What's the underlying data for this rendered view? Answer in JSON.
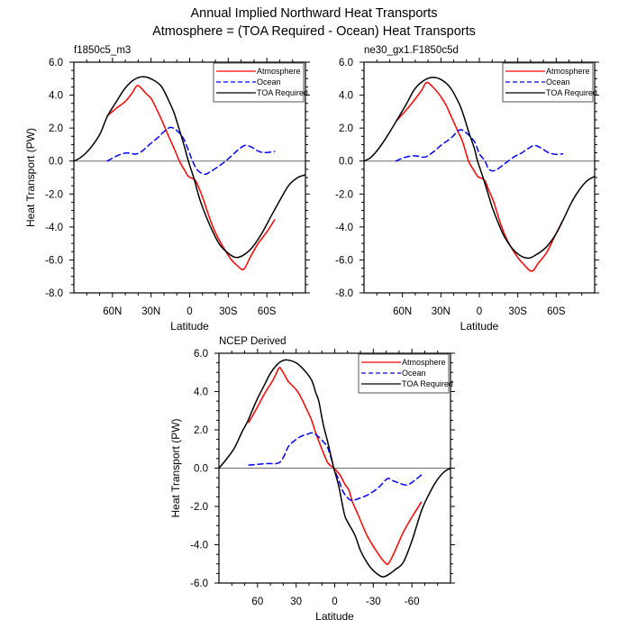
{
  "figure": {
    "title_line1": "Annual Implied Northward Heat Transports",
    "title_line2": "Atmosphere = (TOA Required - Ocean) Heat Transports"
  },
  "chart_data": [
    {
      "type": "line",
      "title": "f1850c5_m3",
      "xlabel": "Latitude",
      "ylabel": "Heat Transport (PW)",
      "xlim": [
        90,
        -90
      ],
      "ylim": [
        -8,
        6
      ],
      "xticks": [
        60,
        30,
        0,
        -30,
        -60
      ],
      "xtick_labels": [
        "60N",
        "30N",
        "0",
        "30S",
        "60S"
      ],
      "xminor_step": 10,
      "yticks": [
        6,
        4,
        2,
        0,
        -2,
        -4,
        -6,
        -8
      ],
      "ytick_labels": [
        "6.0",
        "4.0",
        "2.0",
        "0.0",
        "-2.0",
        "-4.0",
        "-6.0",
        "-8.0"
      ],
      "yminor_step": 0.5,
      "reference_line": 0,
      "grid": false,
      "legend": "top-right",
      "series": [
        {
          "name": "Atmosphere",
          "color": "#ff0000",
          "style": "solid",
          "x": [
            64,
            57,
            50,
            45,
            41,
            38,
            34,
            30,
            26,
            22,
            16,
            12,
            8,
            4,
            1,
            -2,
            -4.7,
            -7,
            -10.5,
            -16,
            -21,
            -26,
            -32,
            -37,
            -42,
            -47,
            -53,
            -60,
            -66
          ],
          "y": [
            2.75,
            3.2,
            3.62,
            4.1,
            4.57,
            4.45,
            4.1,
            3.8,
            3.2,
            2.53,
            1.44,
            0.75,
            0,
            -0.55,
            -0.93,
            -1.05,
            -1.2,
            -1.6,
            -2.3,
            -3.57,
            -4.5,
            -5.21,
            -5.95,
            -6.35,
            -6.57,
            -5.85,
            -5.03,
            -4.3,
            -3.57
          ]
        },
        {
          "name": "Ocean",
          "color": "#0000ff",
          "style": "dashed",
          "x": [
            64,
            57,
            51,
            46,
            42,
            37,
            31.6,
            25,
            20,
            15,
            10,
            4.7,
            0,
            -2.3,
            -6,
            -11.6,
            -16,
            -22,
            -28,
            -33.7,
            -38,
            -43,
            -48,
            -52,
            -56,
            -60,
            -66
          ],
          "y": [
            0,
            0.3,
            0.47,
            0.48,
            0.42,
            0.6,
            0.98,
            1.4,
            1.78,
            2.04,
            1.85,
            1.35,
            0.45,
            0,
            -0.55,
            -0.8,
            -0.65,
            -0.35,
            0,
            0.4,
            0.7,
            0.95,
            0.85,
            0.65,
            0.53,
            0.52,
            0.58
          ]
        },
        {
          "name": "TOA Required",
          "color": "#000000",
          "style": "solid",
          "x": [
            90,
            85,
            78,
            70,
            64,
            57,
            50,
            43,
            36,
            29,
            22,
            16,
            12,
            8,
            4.5,
            1,
            -3.5,
            -7,
            -10,
            -16,
            -23,
            -30,
            -36,
            -42,
            -49,
            -56,
            -63,
            -70,
            -77,
            -84,
            -90
          ],
          "y": [
            0,
            0.2,
            0.71,
            1.6,
            2.71,
            3.6,
            4.44,
            4.95,
            5.12,
            4.95,
            4.53,
            3.62,
            2.9,
            1.9,
            1.0,
            0,
            -1.1,
            -2.1,
            -2.8,
            -3.95,
            -5.03,
            -5.6,
            -5.85,
            -5.7,
            -5.21,
            -4.4,
            -3.39,
            -2.4,
            -1.48,
            -1.0,
            -0.84
          ]
        }
      ]
    },
    {
      "type": "line",
      "title": "ne30_gx1.F1850c5d",
      "xlabel": "Latitude",
      "ylabel": "",
      "xlim": [
        90,
        -90
      ],
      "ylim": [
        -8,
        6
      ],
      "xticks": [
        60,
        30,
        0,
        -30,
        -60
      ],
      "xtick_labels": [
        "60N",
        "30N",
        "0",
        "30S",
        "60S"
      ],
      "xminor_step": 10,
      "yticks": [
        6,
        4,
        2,
        0,
        -2,
        -4,
        -6,
        -8
      ],
      "ytick_labels": [
        "6.0",
        "4.0",
        "2.0",
        "0.0",
        "-2.0",
        "-4.0",
        "-6.0",
        "-8.0"
      ],
      "yminor_step": 0.5,
      "reference_line": 0,
      "grid": false,
      "legend": "top-right",
      "series": [
        {
          "name": "Atmosphere",
          "color": "#ff0000",
          "style": "solid",
          "x": [
            64.7,
            57,
            50.6,
            45,
            41.3,
            37,
            30.7,
            26,
            22.5,
            16.7,
            13,
            8.4,
            4,
            1,
            -1,
            -4.4,
            -7,
            -10.3,
            -12.7,
            -17,
            -22,
            -29,
            -35,
            -41,
            -46,
            -52.5,
            -58,
            -65
          ],
          "y": [
            2.44,
            3.1,
            3.71,
            4.3,
            4.76,
            4.55,
            3.98,
            3.4,
            2.8,
            1.8,
            1.16,
            0,
            -0.6,
            -0.95,
            -1.02,
            -1.2,
            -1.7,
            -2.29,
            -2.84,
            -3.9,
            -4.84,
            -5.75,
            -6.3,
            -6.69,
            -6.2,
            -5.56,
            -4.7,
            -3.62
          ]
        },
        {
          "name": "Ocean",
          "color": "#0000ff",
          "style": "dashed",
          "x": [
            65,
            59,
            53,
            48,
            42.4,
            36,
            29.5,
            22,
            15.5,
            10,
            3.7,
            0,
            -4.4,
            -7,
            -10.3,
            -14,
            -20,
            -27,
            -32.6,
            -38,
            -43,
            -48,
            -53,
            -57,
            -61,
            -65
          ],
          "y": [
            0,
            0.2,
            0.31,
            0.3,
            0.24,
            0.55,
            0.98,
            1.4,
            1.89,
            1.7,
            1.16,
            0.45,
            0,
            -0.45,
            -0.6,
            -0.5,
            -0.15,
            0.25,
            0.47,
            0.75,
            0.95,
            0.8,
            0.55,
            0.44,
            0.4,
            0.44
          ]
        },
        {
          "name": "TOA Required",
          "color": "#000000",
          "style": "solid",
          "x": [
            90,
            85,
            79,
            72,
            64.7,
            57,
            50.6,
            44,
            37.3,
            30,
            22.5,
            15.5,
            12,
            8,
            4,
            1.4,
            -3,
            -8,
            -10,
            -15,
            -20,
            -28,
            -37,
            -44,
            -52.5,
            -60,
            -66.6,
            -72,
            -78,
            -84,
            -90
          ],
          "y": [
            0,
            0.2,
            0.71,
            1.5,
            2.44,
            3.45,
            4.35,
            4.85,
            5.07,
            4.95,
            4.44,
            3.44,
            2.7,
            1.7,
            0.8,
            0,
            -1.02,
            -2.29,
            -2.8,
            -3.8,
            -4.65,
            -5.5,
            -5.89,
            -5.7,
            -5.2,
            -4.4,
            -3.38,
            -2.5,
            -1.75,
            -1.2,
            -0.93
          ]
        }
      ]
    },
    {
      "type": "line",
      "title": "NCEP Derived",
      "xlabel": "Latitude",
      "ylabel": "Heat Transport (PW)",
      "xlim": [
        90,
        -90
      ],
      "ylim": [
        -6,
        6
      ],
      "xticks": [
        60,
        30,
        0,
        -30,
        -60
      ],
      "xtick_labels": [
        "60",
        "30",
        "0",
        "-30",
        "-60"
      ],
      "xminor_step": 10,
      "yticks": [
        6,
        4,
        2,
        0,
        -2,
        -4,
        -6
      ],
      "ytick_labels": [
        "6.0",
        "4.0",
        "2.0",
        "0.0",
        "-2.0",
        "-4.0",
        "-6.0"
      ],
      "yminor_step": 0.5,
      "reference_line": 0,
      "grid": false,
      "legend": "top-right",
      "series": [
        {
          "name": "Atmosphere",
          "color": "#ff0000",
          "style": "solid",
          "x": [
            66.8,
            60,
            54.6,
            48,
            43.4,
            41.7,
            38,
            35.9,
            30,
            26.5,
            22,
            18,
            14.8,
            10,
            5.4,
            0.7,
            -4,
            -8,
            -11,
            -14,
            -18,
            -25,
            -32,
            -36.8,
            -39,
            -41.6,
            -46,
            -53.3,
            -60,
            -67.3
          ],
          "y": [
            2.39,
            3.2,
            3.88,
            4.6,
            5.22,
            5.17,
            4.75,
            4.51,
            4.1,
            3.73,
            3.1,
            2.5,
            1.85,
            1.0,
            0.28,
            0,
            -0.35,
            -0.85,
            -1.15,
            -1.8,
            -2.4,
            -3.5,
            -4.29,
            -4.76,
            -4.92,
            -5.0,
            -4.45,
            -3.35,
            -2.56,
            -1.78
          ]
        },
        {
          "name": "Ocean",
          "color": "#0000ff",
          "style": "dashed",
          "x": [
            66.8,
            60,
            52,
            44,
            40,
            36,
            31,
            26.5,
            21.8,
            17,
            12,
            7.7,
            5.4,
            2,
            0.7,
            -3,
            -6.3,
            -10,
            -13.4,
            -18,
            -24,
            -29.8,
            -35,
            -41,
            -45,
            -50,
            -55.6,
            -60,
            -67.3
          ],
          "y": [
            0.16,
            0.2,
            0.24,
            0.26,
            0.55,
            1.13,
            1.45,
            1.65,
            1.76,
            1.84,
            1.6,
            1.29,
            1.06,
            0.34,
            0,
            -0.6,
            -1.2,
            -1.55,
            -1.69,
            -1.6,
            -1.45,
            -1.23,
            -0.95,
            -0.55,
            -0.65,
            -0.78,
            -0.88,
            -0.75,
            -0.36
          ]
        },
        {
          "name": "TOA Required",
          "color": "#000000",
          "style": "solid",
          "x": [
            90,
            85,
            78,
            72,
            67.5,
            61,
            54.6,
            50,
            45.2,
            41,
            37,
            30,
            24,
            18,
            14.8,
            12.4,
            9,
            5.4,
            0.7,
            -3,
            -7.5,
            -10,
            -15.7,
            -20,
            -25,
            -30,
            -36.8,
            -42,
            -47,
            -53.3,
            -60,
            -67.3,
            -73,
            -79,
            -85,
            -90
          ],
          "y": [
            0,
            0.4,
            1.05,
            1.9,
            2.47,
            3.5,
            4.35,
            4.95,
            5.38,
            5.6,
            5.65,
            5.5,
            5.14,
            4.6,
            3.95,
            3.5,
            2.31,
            1.35,
            0,
            -0.9,
            -2.4,
            -2.8,
            -3.5,
            -4.3,
            -4.92,
            -5.35,
            -5.67,
            -5.55,
            -5.3,
            -4.92,
            -3.8,
            -2.25,
            -1.4,
            -0.68,
            -0.2,
            0
          ]
        }
      ]
    }
  ]
}
